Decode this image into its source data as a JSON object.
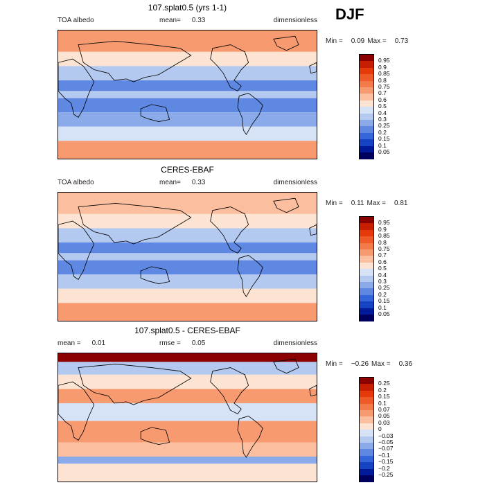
{
  "season": "DJF",
  "panels": [
    {
      "title": "107.splat0.5 (yrs 1-1)",
      "left_label": "TOA albedo",
      "mid_label": "mean=",
      "mid_value": "0.33",
      "right_label": "dimensionless",
      "min_label": "Min =",
      "min_value": "0.09",
      "max_label": "Max =",
      "max_value": "0.73",
      "colorbar": [
        "0.95",
        "0.9",
        "0.85",
        "0.8",
        "0.75",
        "0.7",
        "0.6",
        "0.5",
        "0.4",
        "0.3",
        "0.25",
        "0.2",
        "0.15",
        "0.1",
        "0.05"
      ],
      "colors": [
        "#8b0000",
        "#c81e00",
        "#e63a0a",
        "#f05a28",
        "#f47a4a",
        "#f89a70",
        "#fbbfa0",
        "#fde4d2",
        "#d6e2f6",
        "#b3c9f0",
        "#8aaaea",
        "#5e88e2",
        "#3466d9",
        "#1643c4",
        "#001a9a",
        "#00005e"
      ]
    },
    {
      "title": "CERES-EBAF",
      "left_label": "TOA albedo",
      "mid_label": "mean=",
      "mid_value": "0.33",
      "right_label": "dimensionless",
      "min_label": "Min =",
      "min_value": "0.11",
      "max_label": "Max =",
      "max_value": "0.81",
      "colorbar": [
        "0.95",
        "0.9",
        "0.85",
        "0.8",
        "0.75",
        "0.7",
        "0.6",
        "0.5",
        "0.4",
        "0.3",
        "0.25",
        "0.2",
        "0.15",
        "0.1",
        "0.05"
      ],
      "colors": [
        "#8b0000",
        "#c81e00",
        "#e63a0a",
        "#f05a28",
        "#f47a4a",
        "#f89a70",
        "#fbbfa0",
        "#fde4d2",
        "#d6e2f6",
        "#b3c9f0",
        "#8aaaea",
        "#5e88e2",
        "#3466d9",
        "#1643c4",
        "#001a9a",
        "#00005e"
      ]
    },
    {
      "title": "107.splat0.5 - CERES-EBAF",
      "left_label": "mean =",
      "left_value": "0.01",
      "mid_label": "rmse =",
      "mid_value": "0.05",
      "right_label": "dimensionless",
      "min_label": "Min =",
      "min_value": "−0.26",
      "max_label": "Max =",
      "max_value": "0.36",
      "colorbar": [
        "0.25",
        "0.2",
        "0.15",
        "0.1",
        "0.07",
        "0.05",
        "0.03",
        "0",
        "−0.03",
        "−0.05",
        "−0.07",
        "−0.1",
        "−0.15",
        "−0.2",
        "−0.25"
      ],
      "colors": [
        "#8b0000",
        "#c81e00",
        "#e63a0a",
        "#f05a28",
        "#f47a4a",
        "#f89a70",
        "#fbbfa0",
        "#fde4d2",
        "#d6e2f6",
        "#b3c9f0",
        "#8aaaea",
        "#5e88e2",
        "#3466d9",
        "#1643c4",
        "#001a9a",
        "#00005e"
      ]
    }
  ],
  "chart_data": [
    {
      "type": "heatmap",
      "title": "107.splat0.5 (yrs 1-1)",
      "variable": "TOA albedo",
      "units": "dimensionless",
      "mean": 0.33,
      "min": 0.09,
      "max": 0.73,
      "levels": [
        0.05,
        0.1,
        0.15,
        0.2,
        0.25,
        0.3,
        0.4,
        0.5,
        0.6,
        0.7,
        0.75,
        0.8,
        0.85,
        0.9,
        0.95
      ],
      "zonal_bands": [
        {
          "lat_range": [
            60,
            90
          ],
          "value": 0.7
        },
        {
          "lat_range": [
            40,
            60
          ],
          "value": 0.5
        },
        {
          "lat_range": [
            20,
            40
          ],
          "value": 0.3
        },
        {
          "lat_range": [
            5,
            20
          ],
          "value": 0.22
        },
        {
          "lat_range": [
            -5,
            5
          ],
          "value": 0.35
        },
        {
          "lat_range": [
            -25,
            -5
          ],
          "value": 0.2
        },
        {
          "lat_range": [
            -45,
            -25
          ],
          "value": 0.27
        },
        {
          "lat_range": [
            -65,
            -45
          ],
          "value": 0.45
        },
        {
          "lat_range": [
            -90,
            -65
          ],
          "value": 0.7
        }
      ]
    },
    {
      "type": "heatmap",
      "title": "CERES-EBAF",
      "variable": "TOA albedo",
      "units": "dimensionless",
      "mean": 0.33,
      "min": 0.11,
      "max": 0.81,
      "levels": [
        0.05,
        0.1,
        0.15,
        0.2,
        0.25,
        0.3,
        0.4,
        0.5,
        0.6,
        0.7,
        0.75,
        0.8,
        0.85,
        0.9,
        0.95
      ],
      "zonal_bands": [
        {
          "lat_range": [
            60,
            90
          ],
          "value": 0.65
        },
        {
          "lat_range": [
            40,
            60
          ],
          "value": 0.5
        },
        {
          "lat_range": [
            20,
            40
          ],
          "value": 0.3
        },
        {
          "lat_range": [
            5,
            20
          ],
          "value": 0.2
        },
        {
          "lat_range": [
            -5,
            5
          ],
          "value": 0.3
        },
        {
          "lat_range": [
            -25,
            -5
          ],
          "value": 0.2
        },
        {
          "lat_range": [
            -45,
            -25
          ],
          "value": 0.3
        },
        {
          "lat_range": [
            -65,
            -45
          ],
          "value": 0.5
        },
        {
          "lat_range": [
            -90,
            -65
          ],
          "value": 0.72
        }
      ]
    },
    {
      "type": "heatmap",
      "title": "107.splat0.5 - CERES-EBAF",
      "units": "dimensionless",
      "mean": 0.01,
      "rmse": 0.05,
      "min": -0.26,
      "max": 0.36,
      "levels": [
        -0.25,
        -0.2,
        -0.15,
        -0.1,
        -0.07,
        -0.05,
        -0.03,
        0,
        0.03,
        0.05,
        0.07,
        0.1,
        0.15,
        0.2,
        0.25
      ],
      "zonal_bands": [
        {
          "lat_range": [
            78,
            90
          ],
          "value": 0.25
        },
        {
          "lat_range": [
            60,
            78
          ],
          "value": -0.05
        },
        {
          "lat_range": [
            40,
            60
          ],
          "value": 0.02
        },
        {
          "lat_range": [
            20,
            40
          ],
          "value": 0.05
        },
        {
          "lat_range": [
            -5,
            20
          ],
          "value": -0.03
        },
        {
          "lat_range": [
            -35,
            -5
          ],
          "value": 0.05
        },
        {
          "lat_range": [
            -55,
            -35
          ],
          "value": 0.03
        },
        {
          "lat_range": [
            -65,
            -55
          ],
          "value": -0.07
        },
        {
          "lat_range": [
            -90,
            -65
          ],
          "value": 0.0
        }
      ]
    }
  ]
}
